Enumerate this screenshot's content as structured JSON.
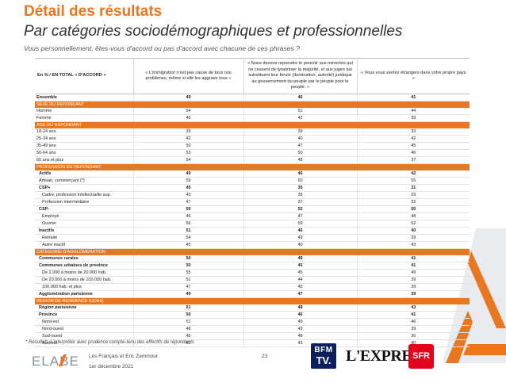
{
  "header": {
    "title": "Détail des résultats",
    "subtitle": "Par catégories sociodémographiques et professionnelles",
    "question": "Vous personnellement, êtes-vous d'accord ou pas d'accord avec chacune de ces phrases ?"
  },
  "table": {
    "label_header": "En % / EN TOTAL « D'ACCORD »",
    "columns": [
      "« L'immigration n'est pas cause de tous nos problèmes, même si elle les aggrave tous »",
      "« Nous devons reprendre le pouvoir aux minorités qui ne cessent de tyranniser la majorité, et aux juges qui substituent leur férule (domination, autorité) juridique au gouvernement du peuple par le peuple pour le peuple. »",
      "« Vous vous sentez étrangers dans votre propre pays »"
    ],
    "rows": [
      {
        "type": "data",
        "bold": true,
        "indent": 0,
        "label": "Ensemble",
        "values": [
          "49",
          "46",
          "41"
        ]
      },
      {
        "type": "section",
        "label": "SEXE DU REPONDANT"
      },
      {
        "type": "data",
        "bold": false,
        "indent": 0,
        "label": "Homme",
        "values": [
          "54",
          "51",
          "44"
        ]
      },
      {
        "type": "data",
        "bold": false,
        "indent": 0,
        "label": "Femme",
        "values": [
          "46",
          "42",
          "39"
        ]
      },
      {
        "type": "section",
        "label": "AGE DU REPONDANT"
      },
      {
        "type": "data",
        "bold": false,
        "indent": 0,
        "label": "18-24 ans",
        "values": [
          "39",
          "39",
          "33"
        ]
      },
      {
        "type": "data",
        "bold": false,
        "indent": 0,
        "label": "25-34 ans",
        "values": [
          "42",
          "40",
          "42"
        ]
      },
      {
        "type": "data",
        "bold": false,
        "indent": 0,
        "label": "35-49 ans",
        "values": [
          "50",
          "47",
          "45"
        ]
      },
      {
        "type": "data",
        "bold": false,
        "indent": 0,
        "label": "50-64 ans",
        "values": [
          "53",
          "50",
          "46"
        ]
      },
      {
        "type": "data",
        "bold": false,
        "indent": 0,
        "label": "65 ans et plus",
        "values": [
          "54",
          "48",
          "37"
        ]
      },
      {
        "type": "section",
        "label": "PROFESSION DU REPONDANT"
      },
      {
        "type": "data",
        "bold": true,
        "indent": 1,
        "label": "Actifs",
        "values": [
          "49",
          "46",
          "42"
        ]
      },
      {
        "type": "data",
        "bold": false,
        "indent": 1,
        "label": "Artisan, commerçant (*)",
        "values": [
          "59",
          "60",
          "55"
        ]
      },
      {
        "type": "data",
        "bold": true,
        "indent": 1,
        "label": "CSP+",
        "values": [
          "45",
          "35",
          "31"
        ]
      },
      {
        "type": "data",
        "bold": false,
        "indent": 2,
        "label": "Cadre, profession intellectuelle sup.",
        "values": [
          "43",
          "35",
          "29"
        ]
      },
      {
        "type": "data",
        "bold": false,
        "indent": 2,
        "label": "Profession intermédiaire",
        "values": [
          "47",
          "37",
          "32"
        ]
      },
      {
        "type": "data",
        "bold": true,
        "indent": 1,
        "label": "CSP-",
        "values": [
          "50",
          "52",
          "50"
        ]
      },
      {
        "type": "data",
        "bold": false,
        "indent": 2,
        "label": "Employé",
        "values": [
          "46",
          "47",
          "48"
        ]
      },
      {
        "type": "data",
        "bold": false,
        "indent": 2,
        "label": "Ouvrier",
        "values": [
          "56",
          "59",
          "52"
        ]
      },
      {
        "type": "data",
        "bold": true,
        "indent": 1,
        "label": "Inactifs",
        "values": [
          "51",
          "46",
          "40"
        ]
      },
      {
        "type": "data",
        "bold": false,
        "indent": 2,
        "label": "Retraité",
        "values": [
          "54",
          "49",
          "39"
        ]
      },
      {
        "type": "data",
        "bold": false,
        "indent": 2,
        "label": "Autre inactif",
        "values": [
          "45",
          "40",
          "43"
        ]
      },
      {
        "type": "section",
        "label": "CATEGORIE D'AGGLOMERATION"
      },
      {
        "type": "data",
        "bold": true,
        "indent": 1,
        "label": "Communes rurales",
        "values": [
          "50",
          "48",
          "41"
        ]
      },
      {
        "type": "data",
        "bold": true,
        "indent": 1,
        "label": "Communes urbaines de province",
        "values": [
          "50",
          "45",
          "41"
        ]
      },
      {
        "type": "data",
        "bold": false,
        "indent": 2,
        "label": "De 2.000 à moins de 20.000 hab.",
        "values": [
          "55",
          "45",
          "49"
        ]
      },
      {
        "type": "data",
        "bold": false,
        "indent": 2,
        "label": "De 20.000 à moins de 100.000 hab.",
        "values": [
          "51",
          "44",
          "39"
        ]
      },
      {
        "type": "data",
        "bold": false,
        "indent": 2,
        "label": "100.000 hab. et plus",
        "values": [
          "47",
          "45",
          "39"
        ]
      },
      {
        "type": "data",
        "bold": true,
        "indent": 1,
        "label": "Agglomération parisienne",
        "values": [
          "49",
          "47",
          "39"
        ]
      },
      {
        "type": "section",
        "label": "REGION DE RESIDENCE (UDA5)"
      },
      {
        "type": "data",
        "bold": true,
        "indent": 1,
        "label": "Région parisienne",
        "values": [
          "51",
          "48",
          "43"
        ]
      },
      {
        "type": "data",
        "bold": true,
        "indent": 1,
        "label": "Province",
        "values": [
          "50",
          "46",
          "41"
        ]
      },
      {
        "type": "data",
        "bold": false,
        "indent": 2,
        "label": "Nord-est",
        "values": [
          "51",
          "49",
          "46"
        ]
      },
      {
        "type": "data",
        "bold": false,
        "indent": 2,
        "label": "Nord-ouest",
        "values": [
          "48",
          "43",
          "39"
        ]
      },
      {
        "type": "data",
        "bold": false,
        "indent": 2,
        "label": "Sud-ouest",
        "values": [
          "45",
          "48",
          "36"
        ]
      },
      {
        "type": "data",
        "bold": false,
        "indent": 2,
        "label": "Sud-est",
        "values": [
          "51",
          "43",
          "40"
        ]
      }
    ]
  },
  "note": "* Résultats à interpréter avec prudence compte-tenu des effectifs de répondants",
  "footer": {
    "logo": "ELABE",
    "study": "Les Français et Eric Zemmour",
    "date": "1er décembre 2021",
    "page": "23",
    "partners": {
      "bfm_line1": "BFM",
      "bfm_line2": "TV.",
      "express": "L'EXPRESS",
      "sfr": "SFR"
    }
  },
  "colors": {
    "accent": "#E87722",
    "bfm": "#0a1f5c",
    "sfr": "#E2001A"
  }
}
